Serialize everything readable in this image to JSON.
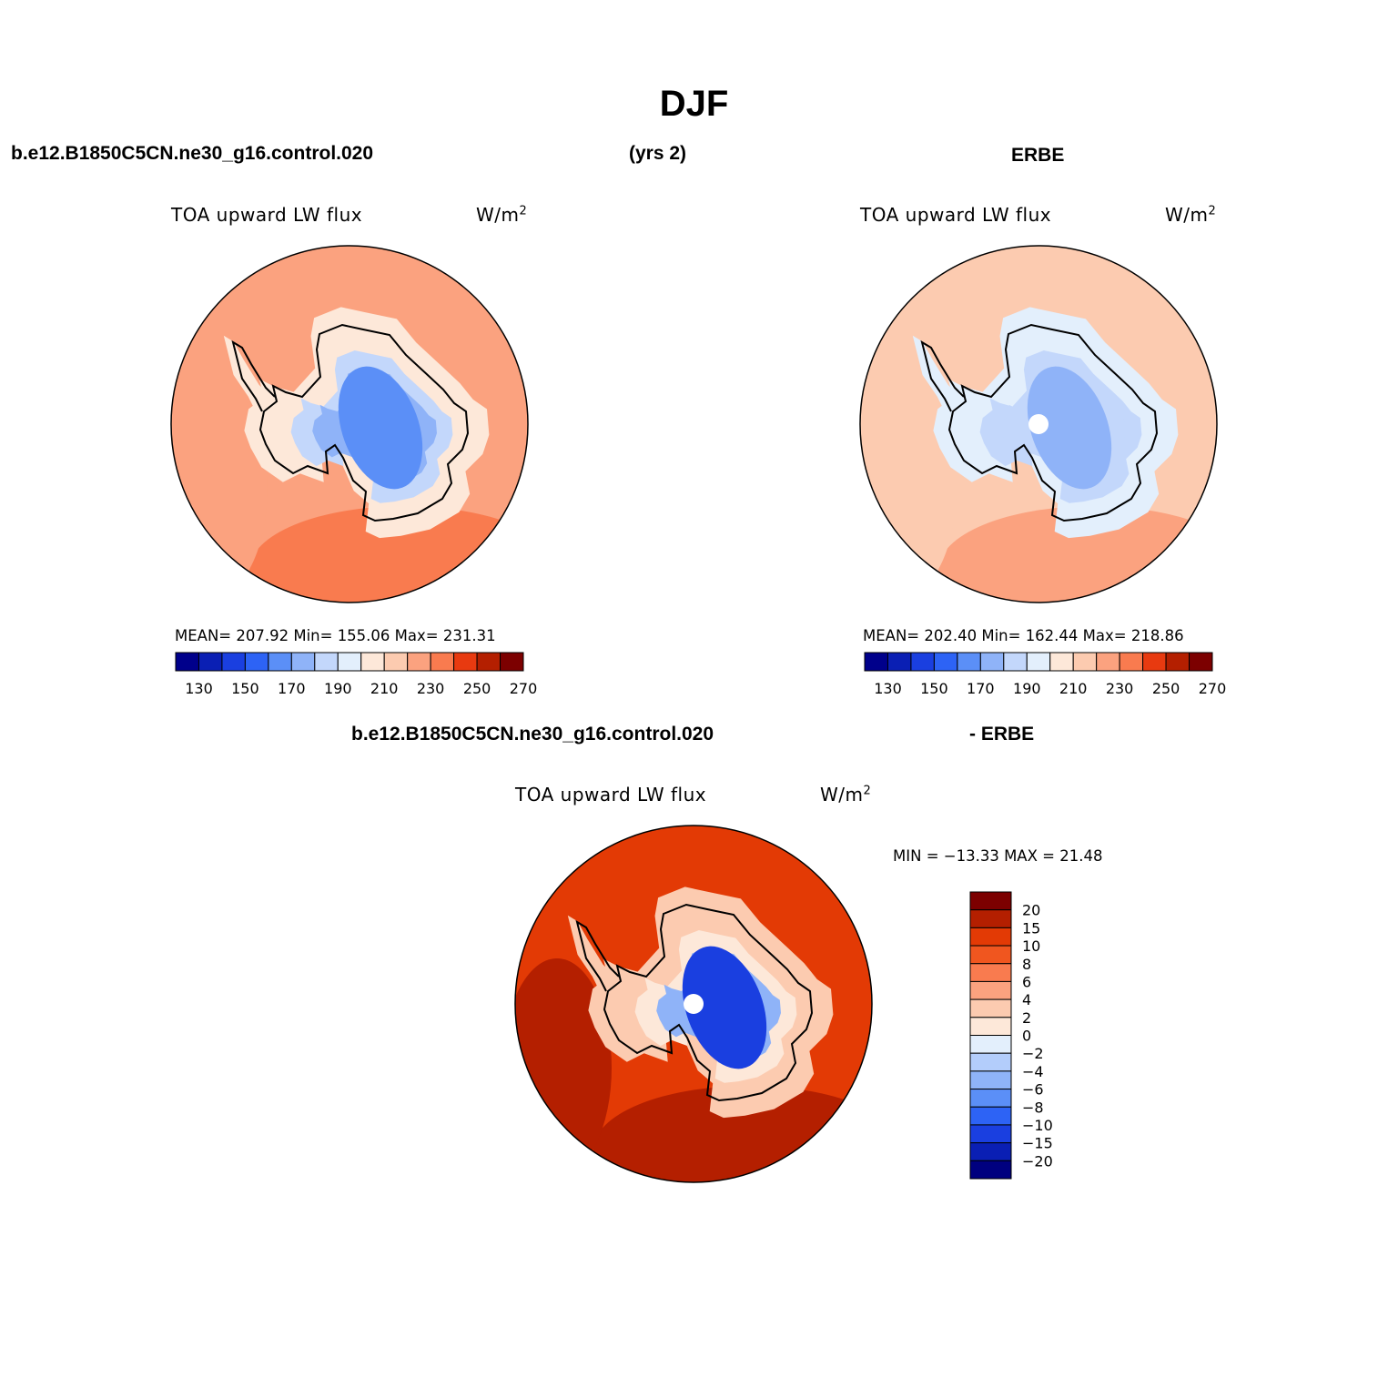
{
  "main_title": "DJF",
  "headers": {
    "model_case": "b.e12.B1850C5CN.ne30_g16.control.020",
    "years": "(yrs 2)",
    "obs": "ERBE",
    "diff_case": "b.e12.B1850C5CN.ne30_g16.control.020",
    "diff_suffix": "- ERBE"
  },
  "colors": {
    "palette13": [
      "#00008b",
      "#0a1fb4",
      "#1a3fe0",
      "#2d63f5",
      "#5b8ff7",
      "#8fb3f8",
      "#c3d7fb",
      "#e3effc",
      "#fde8d9",
      "#fccbb0",
      "#fba27f",
      "#f97b4f",
      "#e83a10",
      "#b41f00",
      "#7c0000"
    ],
    "diff_levels": [
      "#00007f",
      "#0a1fb4",
      "#1a3fe0",
      "#2d63f5",
      "#5b8ff7",
      "#8fb3f8",
      "#b3cdfb",
      "#e3effc",
      "#fde8d9",
      "#fccbb0",
      "#fba27f",
      "#f97b4f",
      "#f0561f",
      "#e33a05",
      "#b41f00",
      "#7c0000"
    ]
  },
  "chart_data": [
    {
      "type": "heatmap",
      "name": "model",
      "title": "TOA upward LW flux",
      "units": "W/m",
      "units_sup": "2",
      "projection": "south-polar-stereographic",
      "stats": {
        "mean": 207.92,
        "min": 155.06,
        "max": 231.31
      },
      "stats_text": "MEAN= 207.92   Min= 155.06   Max= 231.31",
      "levels": [
        130,
        140,
        150,
        160,
        170,
        180,
        190,
        200,
        210,
        220,
        230,
        240,
        250,
        260,
        270
      ],
      "tick_labels": [
        "130",
        "150",
        "170",
        "190",
        "210",
        "230",
        "250",
        "270"
      ],
      "regions": {
        "ocean_value": 222,
        "coast_value": 205,
        "plateau_value": 178,
        "core_value": 162
      }
    },
    {
      "type": "heatmap",
      "name": "obs",
      "title": "TOA upward LW flux",
      "units": "W/m",
      "units_sup": "2",
      "projection": "south-polar-stereographic",
      "stats": {
        "mean": 202.4,
        "min": 162.44,
        "max": 218.86
      },
      "stats_text": "MEAN= 202.40   Min= 162.44   Max= 218.86",
      "levels": [
        130,
        140,
        150,
        160,
        170,
        180,
        190,
        200,
        210,
        220,
        230,
        240,
        250,
        260,
        270
      ],
      "tick_labels": [
        "130",
        "150",
        "170",
        "190",
        "210",
        "230",
        "250",
        "270"
      ],
      "regions": {
        "ocean_value": 212,
        "coast_value": 198,
        "plateau_value": 182,
        "core_value": 170
      }
    },
    {
      "type": "heatmap",
      "name": "difference",
      "title": "TOA upward LW flux",
      "units": "W/m",
      "units_sup": "2",
      "projection": "south-polar-stereographic",
      "stats": {
        "min": -13.33,
        "max": 21.48
      },
      "stats_text": "MIN = −13.33 MAX =  21.48",
      "levels": [
        -20,
        -15,
        -10,
        -8,
        -6,
        -4,
        -2,
        0,
        2,
        4,
        6,
        8,
        10,
        15,
        20
      ],
      "tick_labels": [
        "20",
        "15",
        "10",
        "8",
        "6",
        "4",
        "2",
        "0",
        "−2",
        "−4",
        "−6",
        "−8",
        "−10",
        "−15",
        "−20"
      ],
      "regions": {
        "ocean_value": 10,
        "coast_value": 3,
        "plateau_value": -5,
        "core_value": -11
      }
    }
  ]
}
